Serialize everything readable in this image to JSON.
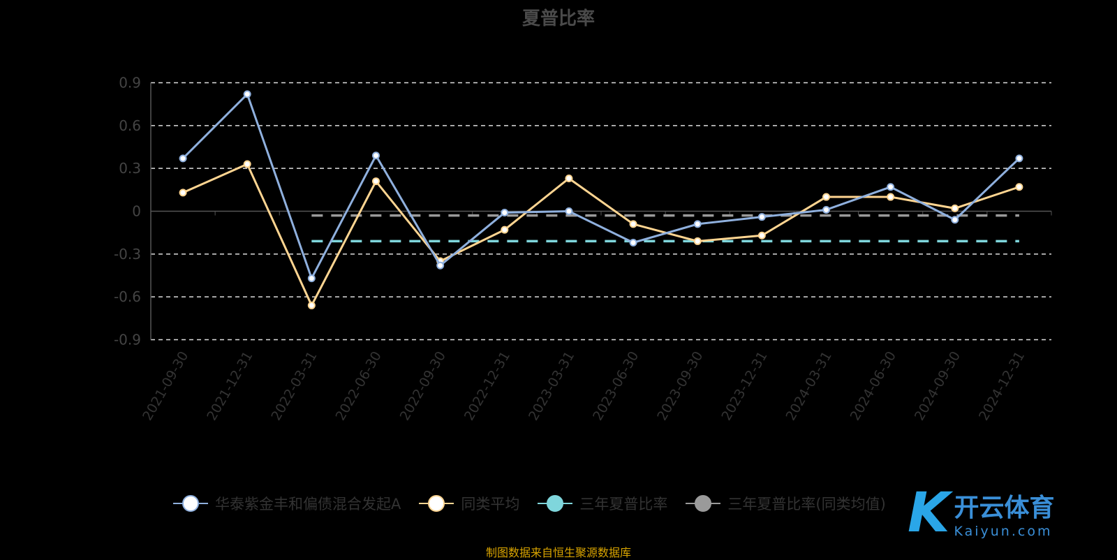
{
  "chart_data": {
    "type": "line",
    "title": "夏普比率",
    "categories": [
      "2021-09-30",
      "2021-12-31",
      "2022-03-31",
      "2022-06-30",
      "2022-09-30",
      "2022-12-31",
      "2023-03-31",
      "2023-06-30",
      "2023-09-30",
      "2023-12-31",
      "2024-03-31",
      "2024-06-30",
      "2024-09-30",
      "2024-12-31"
    ],
    "yticks": [
      "0.9",
      "0.6",
      "0.3",
      "0",
      "-0.3",
      "-0.6",
      "-0.9"
    ],
    "ylim": [
      -0.9,
      0.9
    ],
    "grid": true,
    "legend_position": "bottom",
    "series": [
      {
        "name": "华泰紫金丰和偏债混合发起A",
        "color": "#8fb0de",
        "values": [
          0.37,
          0.82,
          -0.47,
          0.39,
          -0.38,
          -0.01,
          0.0,
          -0.22,
          -0.09,
          -0.04,
          0.01,
          0.17,
          -0.06,
          0.37
        ]
      },
      {
        "name": "同类平均",
        "color": "#ffd591",
        "values": [
          0.13,
          0.33,
          -0.66,
          0.21,
          -0.35,
          -0.13,
          0.23,
          -0.09,
          -0.21,
          -0.17,
          0.1,
          0.1,
          0.02,
          0.17
        ]
      },
      {
        "name": "三年夏普比率",
        "color": "#7fd6dc",
        "dashed": true,
        "values": [
          null,
          null,
          -0.21,
          -0.21,
          -0.21,
          -0.21,
          -0.21,
          -0.21,
          -0.21,
          -0.21,
          -0.21,
          -0.21,
          -0.21,
          -0.21
        ]
      },
      {
        "name": "三年夏普比率(同类均值)",
        "color": "#9a9a9a",
        "dashed": true,
        "values": [
          null,
          null,
          -0.03,
          -0.03,
          -0.03,
          -0.03,
          -0.03,
          -0.03,
          -0.03,
          -0.03,
          -0.03,
          -0.03,
          -0.03,
          -0.03
        ]
      }
    ]
  },
  "source": "制图数据来自恒生聚源数据库",
  "watermark": {
    "logo": "K",
    "name": "开云体育",
    "url": "Kaiyun.com"
  }
}
